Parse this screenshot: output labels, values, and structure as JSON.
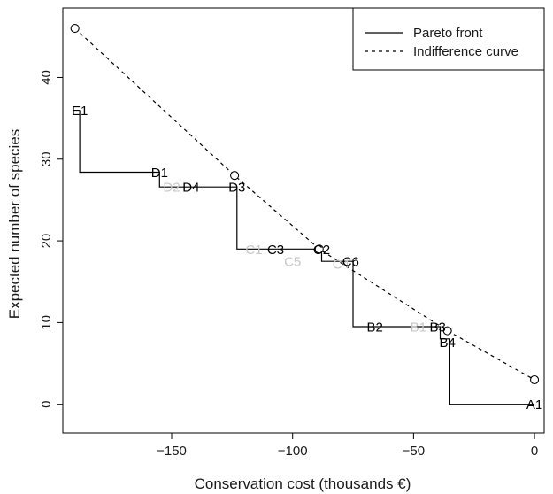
{
  "chart_data": {
    "type": "line",
    "xlabel": "Conservation cost (thousands €)",
    "ylabel": "Expected number of species",
    "xlim": [
      -195,
      4
    ],
    "ylim": [
      -3.5,
      48.5
    ],
    "x_ticks": [
      -150,
      -100,
      -50,
      0
    ],
    "x_tick_labels": [
      "−150",
      "−100",
      "−50",
      "0"
    ],
    "y_ticks": [
      0,
      10,
      20,
      30,
      40
    ],
    "y_tick_labels": [
      "0",
      "10",
      "20",
      "30",
      "40"
    ],
    "legend": {
      "position": "top-right",
      "entries": [
        {
          "label": "Pareto front",
          "style": "solid"
        },
        {
          "label": "Indifference curve",
          "style": "dashed"
        }
      ]
    },
    "series": [
      {
        "name": "Pareto front",
        "style": "solid-step",
        "color": "#000000",
        "points": [
          [
            -188,
            36
          ],
          [
            -188,
            28.4
          ],
          [
            -155,
            28.4
          ],
          [
            -155,
            26.6
          ],
          [
            -123,
            26.6
          ],
          [
            -123,
            19
          ],
          [
            -88,
            19
          ],
          [
            -88,
            17.5
          ],
          [
            -75,
            17.5
          ],
          [
            -75,
            9.5
          ],
          [
            -39,
            9.5
          ],
          [
            -39,
            8
          ],
          [
            -35,
            8
          ],
          [
            -35,
            0
          ],
          [
            0,
            0
          ]
        ]
      },
      {
        "name": "Indifference curve",
        "style": "dashed",
        "color": "#000000",
        "points": [
          [
            -190,
            46
          ],
          [
            -124,
            28
          ],
          [
            -89,
            19
          ],
          [
            -36,
            9
          ],
          [
            0,
            3
          ]
        ]
      }
    ],
    "circle_markers": [
      [
        -190,
        46
      ],
      [
        -124,
        28
      ],
      [
        -89,
        19
      ],
      [
        -36,
        9
      ],
      [
        0,
        3
      ]
    ],
    "point_labels": [
      {
        "text": "E1",
        "x": -188,
        "y": 36,
        "color": "#000000"
      },
      {
        "text": "D1",
        "x": -155,
        "y": 28.4,
        "color": "#000000"
      },
      {
        "text": "D2",
        "x": -150,
        "y": 26.6,
        "color": "#c8c8c8"
      },
      {
        "text": "D4",
        "x": -142,
        "y": 26.6,
        "color": "#000000"
      },
      {
        "text": "D3",
        "x": -123,
        "y": 26.6,
        "color": "#000000"
      },
      {
        "text": "C1",
        "x": -116,
        "y": 19,
        "color": "#c8c8c8"
      },
      {
        "text": "C3",
        "x": -107,
        "y": 19,
        "color": "#000000"
      },
      {
        "text": "C5",
        "x": -100,
        "y": 17.5,
        "color": "#c8c8c8"
      },
      {
        "text": "C2",
        "x": -88,
        "y": 19,
        "color": "#000000"
      },
      {
        "text": "C4",
        "x": -80,
        "y": 17.2,
        "color": "#c8c8c8"
      },
      {
        "text": "C6",
        "x": -76,
        "y": 17.5,
        "color": "#000000"
      },
      {
        "text": "B2",
        "x": -66,
        "y": 9.5,
        "color": "#000000"
      },
      {
        "text": "B1",
        "x": -48,
        "y": 9.5,
        "color": "#c8c8c8"
      },
      {
        "text": "B3",
        "x": -40,
        "y": 9.5,
        "color": "#000000"
      },
      {
        "text": "B4",
        "x": -36,
        "y": 7.6,
        "color": "#000000"
      },
      {
        "text": "A1",
        "x": 0,
        "y": 0,
        "color": "#000000"
      }
    ]
  }
}
